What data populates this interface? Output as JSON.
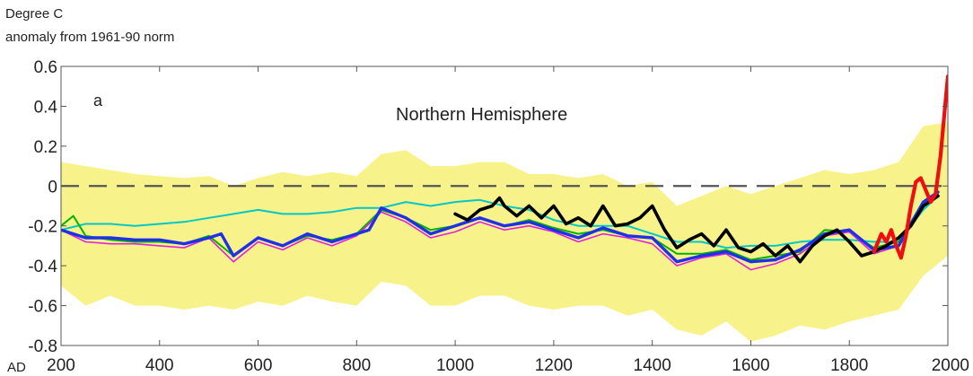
{
  "chart_data": {
    "type": "area",
    "title": "Northern Hemisphere",
    "panel_label": "a",
    "ylabel_lines": [
      "Degree C",
      "anomaly from 1961-90 norm"
    ],
    "xlabel": "",
    "x_prefix": "AD",
    "xlim": [
      200,
      2000
    ],
    "ylim": [
      -0.8,
      0.6
    ],
    "x_ticks": [
      200,
      400,
      600,
      800,
      1000,
      1200,
      1400,
      1600,
      1800,
      2000
    ],
    "y_ticks": [
      0.6,
      0.4,
      0.2,
      0,
      -0.2,
      -0.4,
      -0.6,
      -0.8
    ],
    "y_tick_labels": [
      "0.6",
      "0.4",
      "0.2",
      "0",
      "-0.2",
      "-0.4",
      "-0.6",
      "-0.8"
    ],
    "grid": false,
    "legend": "none",
    "reference_line": {
      "y": 0,
      "style": "dashed",
      "color": "#555555"
    },
    "uncertainty_band": {
      "color": "#f7f28a",
      "x": [
        200,
        250,
        300,
        350,
        400,
        450,
        500,
        550,
        600,
        650,
        700,
        750,
        800,
        850,
        900,
        950,
        1000,
        1050,
        1100,
        1150,
        1200,
        1250,
        1300,
        1350,
        1400,
        1450,
        1500,
        1550,
        1600,
        1650,
        1700,
        1750,
        1800,
        1850,
        1900,
        1950,
        2000
      ],
      "upper": [
        0.12,
        0.1,
        0.08,
        0.06,
        0.05,
        0.04,
        0.05,
        0.0,
        0.04,
        0.07,
        0.05,
        0.07,
        0.05,
        0.16,
        0.18,
        0.1,
        0.1,
        0.12,
        0.12,
        0.06,
        0.06,
        0.04,
        0.06,
        0.0,
        0.02,
        -0.1,
        -0.05,
        0.0,
        -0.04,
        0.0,
        0.04,
        0.08,
        0.06,
        0.08,
        0.12,
        0.3,
        0.32
      ],
      "lower": [
        -0.5,
        -0.6,
        -0.55,
        -0.6,
        -0.6,
        -0.62,
        -0.6,
        -0.62,
        -0.58,
        -0.6,
        -0.55,
        -0.58,
        -0.6,
        -0.48,
        -0.5,
        -0.6,
        -0.6,
        -0.55,
        -0.55,
        -0.6,
        -0.62,
        -0.6,
        -0.6,
        -0.65,
        -0.62,
        -0.72,
        -0.75,
        -0.68,
        -0.78,
        -0.75,
        -0.7,
        -0.72,
        -0.68,
        -0.65,
        -0.62,
        -0.45,
        -0.35
      ]
    },
    "series": [
      {
        "color": "#00c8c8",
        "width": 2,
        "x": [
          200,
          250,
          300,
          350,
          400,
          450,
          500,
          550,
          600,
          650,
          700,
          750,
          800,
          850,
          900,
          950,
          1000,
          1050,
          1100,
          1150,
          1200,
          1250,
          1300,
          1350,
          1400,
          1450,
          1500,
          1550,
          1600,
          1650,
          1700,
          1750,
          1800,
          1850,
          1900,
          1950,
          1980
        ],
        "y": [
          -0.22,
          -0.19,
          -0.19,
          -0.2,
          -0.19,
          -0.18,
          -0.16,
          -0.14,
          -0.12,
          -0.14,
          -0.14,
          -0.13,
          -0.11,
          -0.11,
          -0.08,
          -0.1,
          -0.08,
          -0.07,
          -0.1,
          -0.12,
          -0.17,
          -0.2,
          -0.2,
          -0.2,
          -0.24,
          -0.28,
          -0.28,
          -0.31,
          -0.3,
          -0.3,
          -0.28,
          -0.27,
          -0.27,
          -0.28,
          -0.28,
          -0.12,
          -0.05
        ]
      },
      {
        "color": "#00b400",
        "width": 2,
        "x": [
          200,
          225,
          250,
          300,
          350,
          400,
          450,
          500,
          550,
          600,
          650,
          700,
          750,
          800,
          850,
          900,
          950,
          1000,
          1050,
          1100,
          1150,
          1200,
          1250,
          1300,
          1350,
          1400,
          1450,
          1500,
          1550,
          1600,
          1650,
          1700,
          1750,
          1800,
          1850,
          1900,
          1950,
          1980
        ],
        "y": [
          -0.2,
          -0.15,
          -0.25,
          -0.27,
          -0.28,
          -0.28,
          -0.29,
          -0.25,
          -0.35,
          -0.26,
          -0.3,
          -0.25,
          -0.27,
          -0.24,
          -0.12,
          -0.16,
          -0.22,
          -0.2,
          -0.16,
          -0.2,
          -0.17,
          -0.21,
          -0.24,
          -0.22,
          -0.25,
          -0.26,
          -0.34,
          -0.34,
          -0.32,
          -0.37,
          -0.35,
          -0.33,
          -0.22,
          -0.23,
          -0.31,
          -0.28,
          -0.08,
          -0.04
        ]
      },
      {
        "color": "#e020e0",
        "width": 1.6,
        "x": [
          200,
          250,
          300,
          350,
          400,
          450,
          500,
          550,
          600,
          650,
          700,
          750,
          800,
          850,
          900,
          950,
          1000,
          1050,
          1100,
          1150,
          1200,
          1250,
          1300,
          1350,
          1400,
          1450,
          1500,
          1550,
          1600,
          1650,
          1700,
          1750,
          1800,
          1850,
          1900,
          1950,
          1980
        ],
        "y": [
          -0.22,
          -0.28,
          -0.29,
          -0.29,
          -0.3,
          -0.31,
          -0.26,
          -0.38,
          -0.28,
          -0.32,
          -0.26,
          -0.3,
          -0.25,
          -0.13,
          -0.18,
          -0.26,
          -0.23,
          -0.18,
          -0.22,
          -0.2,
          -0.23,
          -0.28,
          -0.24,
          -0.26,
          -0.29,
          -0.4,
          -0.36,
          -0.34,
          -0.42,
          -0.39,
          -0.34,
          -0.25,
          -0.23,
          -0.34,
          -0.3,
          -0.1,
          -0.05
        ]
      },
      {
        "color": "#2030e8",
        "width": 3.4,
        "x": [
          200,
          250,
          300,
          350,
          400,
          450,
          500,
          525,
          550,
          600,
          650,
          700,
          750,
          800,
          825,
          850,
          900,
          950,
          1000,
          1050,
          1100,
          1150,
          1200,
          1250,
          1300,
          1350,
          1400,
          1450,
          1500,
          1550,
          1600,
          1650,
          1700,
          1750,
          1800,
          1850,
          1900,
          1950,
          1980
        ],
        "y": [
          -0.22,
          -0.26,
          -0.26,
          -0.27,
          -0.27,
          -0.29,
          -0.26,
          -0.24,
          -0.35,
          -0.26,
          -0.3,
          -0.24,
          -0.28,
          -0.24,
          -0.22,
          -0.11,
          -0.16,
          -0.24,
          -0.2,
          -0.16,
          -0.2,
          -0.18,
          -0.22,
          -0.26,
          -0.21,
          -0.25,
          -0.26,
          -0.38,
          -0.35,
          -0.33,
          -0.38,
          -0.37,
          -0.32,
          -0.24,
          -0.22,
          -0.32,
          -0.3,
          -0.08,
          -0.03
        ]
      },
      {
        "color": "#000000",
        "width": 3.6,
        "x": [
          1000,
          1025,
          1050,
          1075,
          1090,
          1100,
          1125,
          1150,
          1175,
          1200,
          1225,
          1250,
          1275,
          1300,
          1325,
          1350,
          1375,
          1400,
          1425,
          1450,
          1475,
          1500,
          1525,
          1550,
          1575,
          1600,
          1625,
          1650,
          1675,
          1700,
          1725,
          1750,
          1775,
          1800,
          1825,
          1850,
          1875,
          1900,
          1925,
          1950,
          1980
        ],
        "y": [
          -0.14,
          -0.17,
          -0.12,
          -0.1,
          -0.06,
          -0.1,
          -0.15,
          -0.1,
          -0.16,
          -0.1,
          -0.19,
          -0.16,
          -0.2,
          -0.1,
          -0.2,
          -0.19,
          -0.16,
          -0.1,
          -0.22,
          -0.31,
          -0.27,
          -0.24,
          -0.3,
          -0.22,
          -0.31,
          -0.33,
          -0.29,
          -0.35,
          -0.3,
          -0.38,
          -0.3,
          -0.25,
          -0.22,
          -0.28,
          -0.35,
          -0.33,
          -0.3,
          -0.26,
          -0.2,
          -0.1,
          -0.05
        ]
      },
      {
        "color": "#ee1010",
        "width": 4.2,
        "x": [
          1850,
          1865,
          1875,
          1885,
          1895,
          1905,
          1915,
          1925,
          1935,
          1945,
          1955,
          1965,
          1975,
          1985,
          1995,
          2000
        ],
        "y": [
          -0.33,
          -0.24,
          -0.28,
          -0.22,
          -0.3,
          -0.36,
          -0.25,
          -0.1,
          0.02,
          0.04,
          -0.02,
          -0.08,
          -0.04,
          0.15,
          0.42,
          0.55
        ]
      }
    ]
  }
}
